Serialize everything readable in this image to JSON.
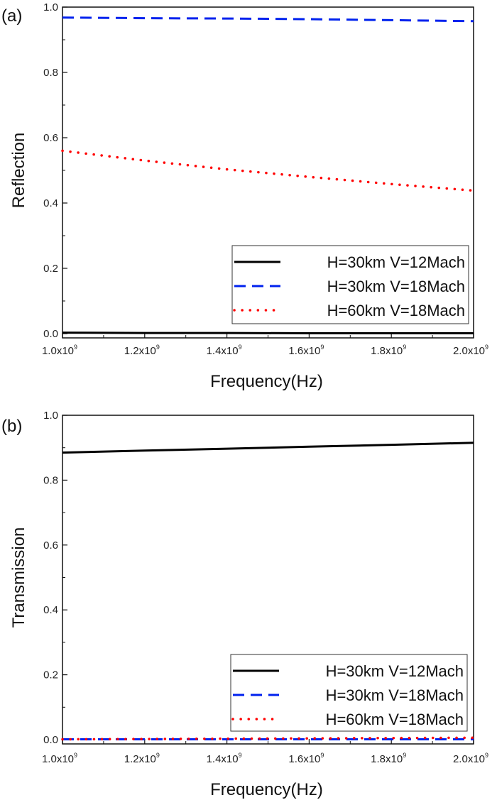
{
  "chart_data": [
    {
      "type": "line",
      "panel_label": "(a)",
      "xlabel": "Frequency(Hz)",
      "ylabel": "Reflection",
      "xlim": [
        1000000000.0,
        2000000000.0
      ],
      "ylim": [
        0.0,
        1.0
      ],
      "xticks": [
        {
          "value": 1000000000.0,
          "base": "1.0x10",
          "exp": "9"
        },
        {
          "value": 1200000000.0,
          "base": "1.2x10",
          "exp": "9"
        },
        {
          "value": 1400000000.0,
          "base": "1.4x10",
          "exp": "9"
        },
        {
          "value": 1600000000.0,
          "base": "1.6x10",
          "exp": "9"
        },
        {
          "value": 1800000000.0,
          "base": "1.8x10",
          "exp": "9"
        },
        {
          "value": 2000000000.0,
          "base": "2.0x10",
          "exp": "9"
        }
      ],
      "yticks": [
        {
          "value": 0.0,
          "label": "0.0"
        },
        {
          "value": 0.2,
          "label": "0.2"
        },
        {
          "value": 0.4,
          "label": "0.4"
        },
        {
          "value": 0.6,
          "label": "0.6"
        },
        {
          "value": 0.8,
          "label": "0.8"
        },
        {
          "value": 1.0,
          "label": "1.0"
        }
      ],
      "legend_position": "bottom-right",
      "x": [
        1000000000.0,
        1200000000.0,
        1400000000.0,
        1600000000.0,
        1800000000.0,
        2000000000.0
      ],
      "series": [
        {
          "name": "H=30km V=12Mach",
          "style": "solid",
          "color": "#000000",
          "values": [
            0.003,
            0.002,
            0.002,
            0.001,
            0.001,
            0.001
          ]
        },
        {
          "name": "H=30km V=18Mach",
          "style": "dashed",
          "color": "#0022ee",
          "values": [
            0.968,
            0.966,
            0.965,
            0.963,
            0.96,
            0.957
          ]
        },
        {
          "name": "H=60km V=18Mach",
          "style": "dotted",
          "color": "#ff0000",
          "values": [
            0.56,
            0.53,
            0.503,
            0.48,
            0.458,
            0.438
          ]
        }
      ]
    },
    {
      "type": "line",
      "panel_label": "(b)",
      "xlabel": "Frequency(Hz)",
      "ylabel": "Transmission",
      "xlim": [
        1000000000.0,
        2000000000.0
      ],
      "ylim": [
        0.0,
        1.0
      ],
      "xticks": [
        {
          "value": 1000000000.0,
          "base": "1.0x10",
          "exp": "9"
        },
        {
          "value": 1200000000.0,
          "base": "1.2x10",
          "exp": "9"
        },
        {
          "value": 1400000000.0,
          "base": "1.4x10",
          "exp": "9"
        },
        {
          "value": 1600000000.0,
          "base": "1.6x10",
          "exp": "9"
        },
        {
          "value": 1800000000.0,
          "base": "1.8x10",
          "exp": "9"
        },
        {
          "value": 2000000000.0,
          "base": "2.0x10",
          "exp": "9"
        }
      ],
      "yticks": [
        {
          "value": 0.0,
          "label": "0.0"
        },
        {
          "value": 0.2,
          "label": "0.2"
        },
        {
          "value": 0.4,
          "label": "0.4"
        },
        {
          "value": 0.6,
          "label": "0.6"
        },
        {
          "value": 0.8,
          "label": "0.8"
        },
        {
          "value": 1.0,
          "label": "1.0"
        }
      ],
      "legend_position": "bottom-right",
      "x": [
        1000000000.0,
        1200000000.0,
        1400000000.0,
        1600000000.0,
        1800000000.0,
        2000000000.0
      ],
      "series": [
        {
          "name": "H=30km V=12Mach",
          "style": "solid",
          "color": "#000000",
          "values": [
            0.885,
            0.891,
            0.897,
            0.903,
            0.909,
            0.915
          ]
        },
        {
          "name": "H=30km V=18Mach",
          "style": "dashed",
          "color": "#0022ee",
          "values": [
            0.001,
            0.001,
            0.001,
            0.001,
            0.001,
            0.001
          ]
        },
        {
          "name": "H=60km V=18Mach",
          "style": "dotted",
          "color": "#ff0000",
          "values": [
            0.001,
            0.002,
            0.003,
            0.004,
            0.005,
            0.006
          ]
        }
      ]
    }
  ]
}
